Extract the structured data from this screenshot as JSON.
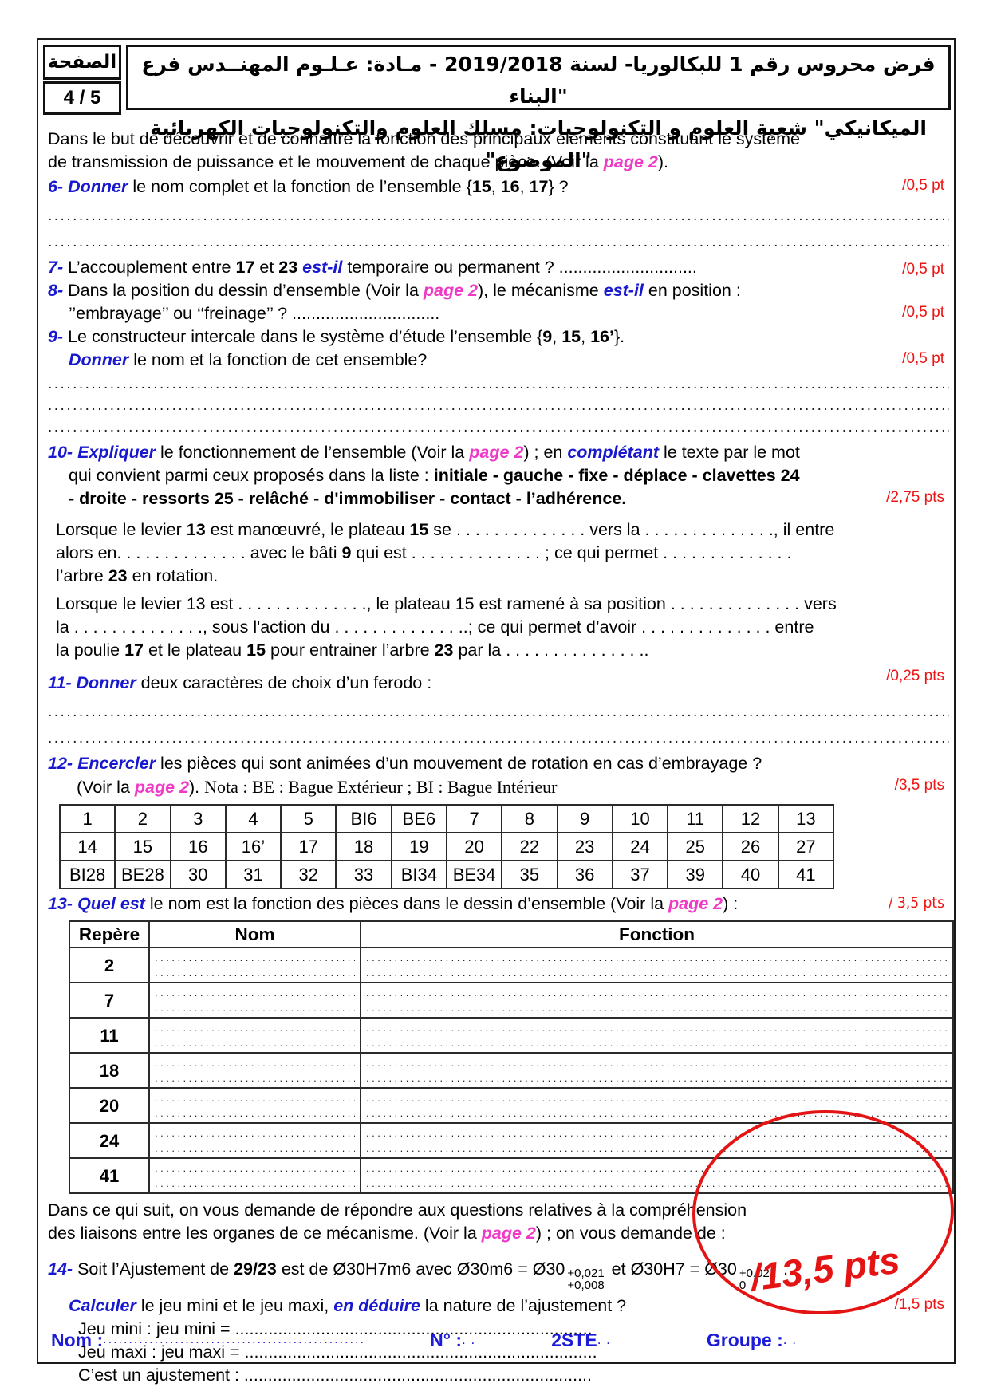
{
  "page_box": {
    "label": "الصفحة",
    "number": "4 / 5"
  },
  "header": {
    "line1": "فرض محروس رقم 1 للبكالوريا- لسنة 2019/2018 - مـادة: عـلـوم المهنــدس فرع \"البناء",
    "line2": "الميكانيكي\"  شعبة العلوم و التكنولوجيات: مسلك العلوم والتكنولوجيات الكهربائية \"الموضوع\""
  },
  "filler": {
    "dots": "........................................................................................................................................................................................................"
  },
  "content": {
    "intro1": [
      [
        " Dans le but de découvrir et de connaître la fonction des principaux éléments constituant le système",
        ""
      ]
    ],
    "intro2": [
      [
        "de transmission de puissance et le mouvement de chaque pièce. (Voir la ",
        ""
      ],
      [
        "page 2",
        "p"
      ],
      [
        ").",
        ""
      ]
    ],
    "q6": {
      "line": [
        [
          "6- ",
          "n"
        ],
        [
          "Donner",
          "v"
        ],
        [
          " le nom complet et la fonction de l’ensemble {",
          ""
        ],
        [
          "15",
          "b"
        ],
        [
          ", ",
          ""
        ],
        [
          "16",
          "b"
        ],
        [
          ", ",
          ""
        ],
        [
          "17",
          "b"
        ],
        [
          "} ?",
          ""
        ]
      ],
      "pts": "/0,5 pt"
    },
    "q7": {
      "line": [
        [
          "7- ",
          "n"
        ],
        [
          "L’accouplement entre ",
          ""
        ],
        [
          "17",
          "b"
        ],
        [
          " et ",
          ""
        ],
        [
          "23 ",
          "b"
        ],
        [
          "est-il",
          "v"
        ],
        [
          " temporaire ou permanent ? .............................",
          ""
        ]
      ],
      "pts": "/0,5 pt"
    },
    "q8a": [
      [
        "8- ",
        "n"
      ],
      [
        "Dans la position du dessin d’ensemble (Voir la ",
        ""
      ],
      [
        "page 2",
        "p"
      ],
      [
        "), le mécanisme ",
        ""
      ],
      [
        "est-il",
        "v"
      ],
      [
        " en position :",
        ""
      ]
    ],
    "q8b": {
      "line": [
        [
          "’’embrayage’’ ou  ‘‘freinage’’ ? ...............................",
          ""
        ]
      ],
      "pts": "/0,5 pt"
    },
    "q9a": [
      [
        "9- ",
        "n"
      ],
      [
        "Le constructeur intercale dans le système d’étude l’ensemble {",
        ""
      ],
      [
        "9",
        "b"
      ],
      [
        ", ",
        ""
      ],
      [
        "15",
        "b"
      ],
      [
        ", ",
        ""
      ],
      [
        "16’",
        "b"
      ],
      [
        "}.",
        ""
      ]
    ],
    "q9b": {
      "line": [
        [
          "Donner",
          "v"
        ],
        [
          " le nom et la fonction de cet ensemble?",
          ""
        ]
      ],
      "pts": "/0,5 pt"
    },
    "q10a": [
      [
        "10- ",
        "n"
      ],
      [
        "Expliquer",
        "v"
      ],
      [
        " le fonctionnement de l’ensemble (Voir la ",
        ""
      ],
      [
        "page 2",
        "p"
      ],
      [
        ") ; en ",
        ""
      ],
      [
        "complétant",
        "v"
      ],
      [
        " le texte par le mot",
        ""
      ]
    ],
    "q10b": [
      [
        "qui convient parmi ceux proposés dans la liste : ",
        ""
      ],
      [
        "initiale - gauche - fixe - déplace - clavettes 24",
        "b"
      ]
    ],
    "q10c": {
      "line": [
        [
          "- droite - ressorts 25 - relâché - d'immobiliser - contact - l’adhérence.",
          "b"
        ]
      ],
      "pts": "/2,75 pts"
    },
    "p1a": [
      [
        " Lorsque le levier ",
        ""
      ],
      [
        "13",
        "b"
      ],
      [
        " est manœuvré, le plateau ",
        ""
      ],
      [
        "15",
        "b"
      ],
      [
        " se . . . . . . . . . . . . . . vers la . . . . . . . . . . . . . ., il entre",
        ""
      ]
    ],
    "p1b": [
      [
        "alors en. . . . . . . . . . . . . .  avec le bâti ",
        ""
      ],
      [
        "9",
        "b"
      ],
      [
        " qui est . . . . . . . . . . . . . .   ; ce qui permet . . . . . . . . . . . . . .",
        ""
      ]
    ],
    "p1c": [
      [
        "l’arbre ",
        ""
      ],
      [
        "23",
        "b"
      ],
      [
        " en rotation.",
        ""
      ]
    ],
    "p2a": [
      [
        " Lorsque le levier 13 est . . . . . . . . . . . . . ., le plateau 15 est ramené à sa position . . . . . . . . . . . . . .   vers",
        ""
      ]
    ],
    "p2b": [
      [
        "la . . . . . . . . . . . . . ., sous l'action du . . . . . . . . . . . . . ..; ce qui permet d’avoir . . . . . . . . . . . . . .   entre",
        ""
      ]
    ],
    "p2c": [
      [
        "la poulie ",
        ""
      ],
      [
        "17",
        "b"
      ],
      [
        " et le plateau ",
        ""
      ],
      [
        "15",
        "b"
      ],
      [
        " pour entrainer l’arbre ",
        ""
      ],
      [
        "23",
        "b"
      ],
      [
        " par la . . . . . . . . . . . . . . ..",
        ""
      ]
    ],
    "q11": {
      "line": [
        [
          "11- ",
          "n"
        ],
        [
          "Donner",
          "v"
        ],
        [
          " deux caractères de choix d’un ferodo :",
          ""
        ]
      ],
      "pts": "/0,25 pts"
    },
    "q12a": [
      [
        "12- ",
        "n"
      ],
      [
        "Encercler",
        "v"
      ],
      [
        " les pièces qui sont animées d’un mouvement de rotation en cas d’embrayage ?",
        ""
      ]
    ],
    "q12b": {
      "line": [
        [
          "(Voir la ",
          ""
        ],
        [
          "page 2",
          "p"
        ],
        [
          "). ",
          ""
        ],
        [
          "Nota : BE : Bague Extérieur ; BI : Bague Intérieur",
          "serif"
        ]
      ],
      "pts": "/3,5 pts"
    },
    "q13": {
      "line": [
        [
          "13- ",
          "n"
        ],
        [
          "Quel est",
          "v"
        ],
        [
          " le nom est la fonction des pièces dans le dessin d’ensemble (Voir la ",
          ""
        ],
        [
          "page 2",
          "p"
        ],
        [
          ") :",
          ""
        ]
      ],
      "pts": "/ 3,5 pts"
    },
    "post1": [
      [
        "Dans ce qui suit, on vous demande de répondre aux questions relatives à la compréhension",
        ""
      ]
    ],
    "post2": [
      [
        "des liaisons entre les organes de ce mécanisme. (Voir la ",
        ""
      ],
      [
        "page 2",
        "p"
      ],
      [
        ") ; on vous demande de :",
        ""
      ]
    ],
    "q14": [
      [
        "14- ",
        "n"
      ],
      [
        "Soit l’Ajustement de ",
        ""
      ],
      [
        "29/23",
        "b"
      ],
      [
        " est de  Ø30H7m6 avec Ø30m6 = Ø30",
        ""
      ],
      [
        "+0,021|+0,008",
        "frac"
      ],
      [
        "  et Ø30H7 = Ø30",
        ""
      ],
      [
        "+0,021|0",
        "frac"
      ],
      [
        "     .",
        ""
      ]
    ],
    "q14b": {
      "line": [
        [
          "Calculer",
          "v"
        ],
        [
          " le jeu mini et le jeu maxi, ",
          ""
        ],
        [
          "en déduire",
          "v"
        ],
        [
          " la nature de l’ajustement ?",
          ""
        ]
      ],
      "pts": "/1,5 pts"
    },
    "jmin": [
      [
        "Jeu mini : jeu mini = ...........................................................................",
        ""
      ]
    ],
    "jmax": [
      [
        "Jeu maxi : jeu maxi  = ..........................................................................",
        ""
      ]
    ],
    "ajus": [
      [
        "C’est un ajustement : .........................................................................",
        ""
      ]
    ]
  },
  "table12": {
    "rows": [
      [
        "1",
        "2",
        "3",
        "4",
        "5",
        "BI6",
        "BE6",
        "7",
        "8",
        "9",
        "10",
        "11",
        "12",
        "13"
      ],
      [
        "14",
        "15",
        "16",
        "16’",
        "17",
        "18",
        "19",
        "20",
        "22",
        "23",
        "24",
        "25",
        "26",
        "27"
      ],
      [
        "BI28",
        "BE28",
        "30",
        "31",
        "32",
        "33",
        "BI34",
        "BE34",
        "35",
        "36",
        "37",
        "39",
        "40",
        "41"
      ]
    ]
  },
  "table13": {
    "headers": [
      "Repère",
      "Nom",
      "Fonction"
    ],
    "rows": [
      "2",
      "7",
      "11",
      "18",
      "20",
      "24",
      "41"
    ]
  },
  "total_points": "/13,5 pts",
  "footer": {
    "nom_label": "Nom :",
    "num_label": "N° :",
    "num_dots": ". .",
    "classe": "2STE",
    "classe_dots": ". .",
    "groupe_label": "Groupe :",
    "groupe_dots": ". ."
  }
}
